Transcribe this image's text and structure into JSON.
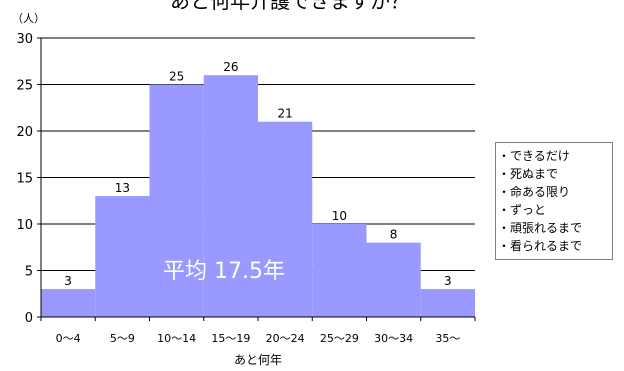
{
  "chart_data": {
    "type": "bar",
    "title": "あと何年介護できますか？",
    "xlabel": "あと何年",
    "ylabel_unit": "（人）",
    "categories": [
      "0～4",
      "5～9",
      "10～14",
      "15～19",
      "20～24",
      "25～29",
      "30～34",
      "35～"
    ],
    "values": [
      3,
      13,
      25,
      26,
      21,
      10,
      8,
      3
    ],
    "ylim": [
      0,
      30
    ],
    "yticks": [
      0,
      5,
      10,
      15,
      20,
      25,
      30
    ],
    "grid": true,
    "bar_color": "#9999ff",
    "annotation": "平均 17.5年",
    "legend_placement": "right",
    "legend_items": [
      "・できるだけ",
      "・死ぬまで",
      "・命ある限り",
      "・ずっと",
      "・頑張れるまで",
      "・看られるまで"
    ]
  }
}
